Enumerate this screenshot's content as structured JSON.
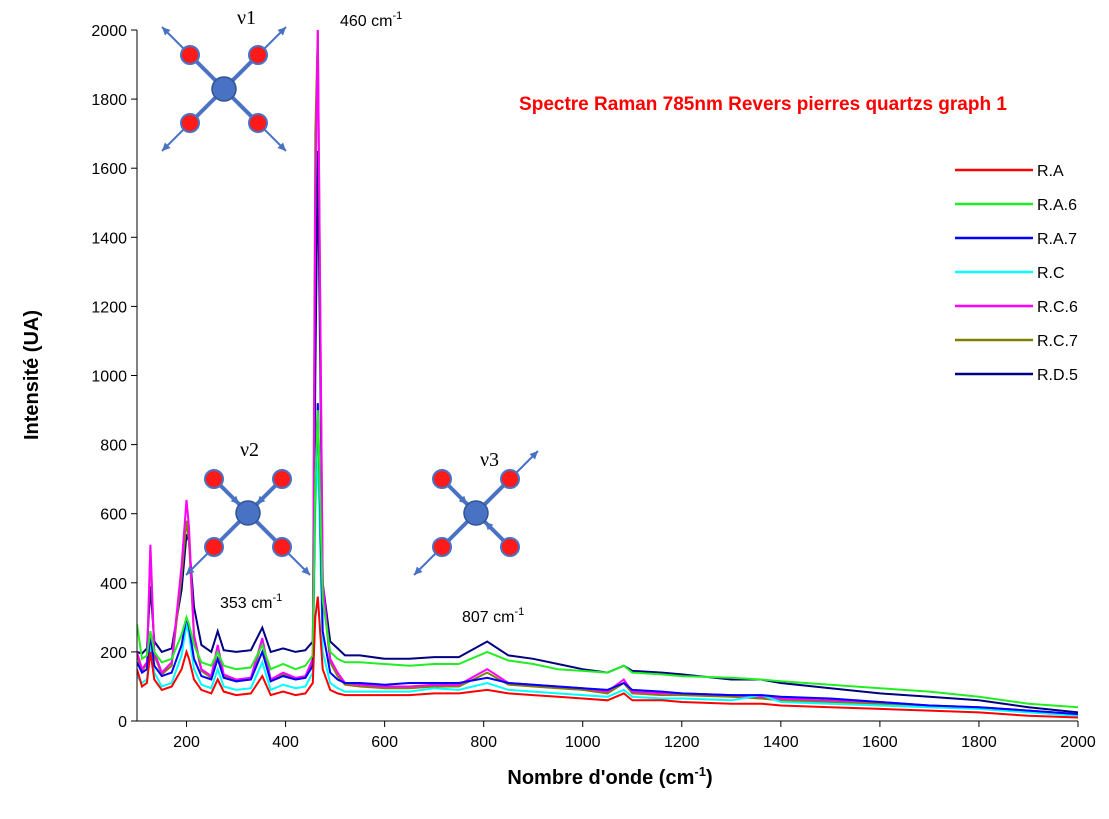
{
  "chart_data": {
    "type": "line",
    "title": "Spectre Raman 785nm Revers pierres quartzs graph 1",
    "x_label": {
      "before": "Nombre d'onde (cm",
      "sup": "-1",
      "after": ")"
    },
    "y_label": "Intensité (UA)",
    "xlim": [
      100,
      2000
    ],
    "xticks": [
      200,
      400,
      600,
      800,
      1000,
      1200,
      1400,
      1600,
      1800,
      2000
    ],
    "ylim": [
      0,
      2000
    ],
    "yticks": [
      0,
      200,
      400,
      600,
      800,
      1000,
      1200,
      1400,
      1600,
      1800,
      2000
    ],
    "annotations": [
      {
        "text": "ν1"
      },
      {
        "text": "ν2"
      },
      {
        "text": "ν3"
      },
      {
        "text": "460 cm",
        "sup": "-1"
      },
      {
        "text": "353 cm",
        "sup": "-1"
      },
      {
        "text": "807 cm",
        "sup": "-1"
      }
    ],
    "x": [
      100,
      110,
      120,
      127,
      135,
      150,
      170,
      190,
      200,
      205,
      215,
      230,
      250,
      263,
      275,
      300,
      330,
      353,
      370,
      395,
      420,
      440,
      455,
      460,
      465,
      475,
      490,
      505,
      520,
      550,
      600,
      650,
      700,
      750,
      807,
      850,
      900,
      950,
      1000,
      1050,
      1083,
      1100,
      1160,
      1200,
      1300,
      1360,
      1400,
      1500,
      1600,
      1700,
      1800,
      1900,
      2000
    ],
    "series": [
      {
        "name": "R.A",
        "color": "#ff0000",
        "values": [
          150,
          100,
          110,
          200,
          120,
          90,
          100,
          150,
          200,
          180,
          120,
          90,
          80,
          120,
          85,
          75,
          80,
          130,
          75,
          85,
          75,
          80,
          110,
          300,
          360,
          150,
          90,
          80,
          75,
          75,
          75,
          75,
          80,
          80,
          90,
          80,
          75,
          70,
          65,
          60,
          80,
          60,
          60,
          55,
          50,
          50,
          45,
          40,
          35,
          30,
          25,
          15,
          10
        ]
      },
      {
        "name": "R.A.6",
        "color": "#22ee22",
        "values": [
          280,
          180,
          190,
          260,
          200,
          170,
          180,
          250,
          300,
          280,
          220,
          170,
          160,
          200,
          160,
          150,
          155,
          220,
          150,
          165,
          150,
          160,
          190,
          700,
          900,
          350,
          200,
          180,
          170,
          170,
          165,
          160,
          165,
          165,
          200,
          175,
          165,
          150,
          145,
          140,
          160,
          140,
          135,
          130,
          125,
          120,
          115,
          105,
          95,
          85,
          70,
          50,
          40
        ]
      },
      {
        "name": "R.A.7",
        "color": "#0000ff",
        "values": [
          170,
          140,
          150,
          250,
          160,
          130,
          140,
          220,
          300,
          270,
          180,
          130,
          120,
          180,
          125,
          115,
          120,
          200,
          115,
          130,
          120,
          125,
          160,
          700,
          920,
          260,
          140,
          120,
          110,
          110,
          105,
          110,
          110,
          110,
          125,
          110,
          105,
          100,
          95,
          90,
          110,
          90,
          85,
          80,
          75,
          75,
          70,
          65,
          55,
          45,
          40,
          30,
          20
        ]
      },
      {
        "name": "R.C",
        "color": "#00ffff",
        "values": [
          130,
          110,
          120,
          230,
          140,
          100,
          110,
          190,
          280,
          250,
          150,
          105,
          95,
          150,
          100,
          90,
          95,
          170,
          90,
          105,
          95,
          100,
          140,
          600,
          800,
          200,
          110,
          95,
          85,
          85,
          85,
          85,
          95,
          90,
          110,
          90,
          85,
          80,
          75,
          70,
          90,
          70,
          65,
          65,
          60,
          75,
          55,
          50,
          45,
          40,
          35,
          25,
          15
        ]
      },
      {
        "name": "R.C.6",
        "color": "#ff00ff",
        "values": [
          200,
          150,
          170,
          510,
          200,
          140,
          170,
          450,
          640,
          560,
          250,
          150,
          130,
          220,
          135,
          120,
          125,
          240,
          120,
          140,
          125,
          130,
          180,
          1500,
          2000,
          400,
          180,
          140,
          110,
          105,
          100,
          100,
          105,
          105,
          150,
          110,
          105,
          100,
          95,
          85,
          120,
          85,
          80,
          80,
          75,
          70,
          65,
          60,
          55,
          45,
          40,
          30,
          20
        ]
      },
      {
        "name": "R.C.7",
        "color": "#808000",
        "values": [
          190,
          145,
          165,
          500,
          190,
          135,
          160,
          420,
          580,
          520,
          240,
          145,
          125,
          210,
          130,
          115,
          120,
          230,
          115,
          135,
          120,
          125,
          170,
          1700,
          2000,
          380,
          170,
          130,
          105,
          100,
          95,
          95,
          100,
          100,
          140,
          105,
          100,
          95,
          90,
          80,
          110,
          80,
          75,
          75,
          70,
          65,
          60,
          55,
          50,
          42,
          38,
          28,
          18
        ]
      },
      {
        "name": "R.D.5",
        "color": "#000080",
        "values": [
          200,
          195,
          210,
          390,
          230,
          200,
          210,
          380,
          540,
          520,
          330,
          220,
          200,
          260,
          205,
          200,
          205,
          270,
          200,
          210,
          200,
          205,
          230,
          1000,
          1650,
          400,
          230,
          210,
          190,
          190,
          180,
          180,
          185,
          185,
          230,
          190,
          180,
          165,
          150,
          140,
          160,
          145,
          140,
          135,
          120,
          120,
          110,
          95,
          80,
          70,
          60,
          40,
          25
        ]
      }
    ]
  }
}
